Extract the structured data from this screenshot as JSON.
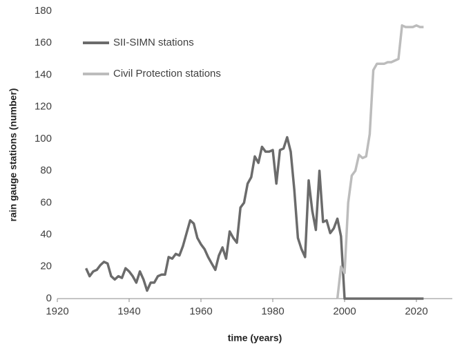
{
  "chart_data": {
    "type": "line",
    "xlabel": "time (years)",
    "ylabel": "rain gauge stations (number)",
    "x": [
      1928,
      1929,
      1930,
      1931,
      1932,
      1933,
      1934,
      1935,
      1936,
      1937,
      1938,
      1939,
      1940,
      1941,
      1942,
      1943,
      1944,
      1945,
      1946,
      1947,
      1948,
      1949,
      1950,
      1951,
      1952,
      1953,
      1954,
      1955,
      1956,
      1957,
      1958,
      1959,
      1960,
      1961,
      1962,
      1963,
      1964,
      1965,
      1966,
      1967,
      1968,
      1969,
      1970,
      1971,
      1972,
      1973,
      1974,
      1975,
      1976,
      1977,
      1978,
      1979,
      1980,
      1981,
      1982,
      1983,
      1984,
      1985,
      1986,
      1987,
      1988,
      1989,
      1990,
      1991,
      1992,
      1993,
      1994,
      1995,
      1996,
      1997,
      1998,
      1999,
      2000,
      2001,
      2002,
      2003,
      2004,
      2005,
      2006,
      2007,
      2008,
      2009,
      2010,
      2011,
      2012,
      2013,
      2014,
      2015,
      2016,
      2017,
      2018,
      2019,
      2020,
      2021,
      2022
    ],
    "series": [
      {
        "name": "SII-SIMN stations",
        "color": "#6b6b6b",
        "values": [
          19,
          14,
          17,
          18,
          21,
          23,
          22,
          14,
          12,
          14,
          13,
          19,
          17,
          14,
          10,
          17,
          12,
          5,
          10,
          10,
          14,
          15,
          15,
          26,
          25,
          28,
          27,
          33,
          41,
          49,
          47,
          38,
          34,
          31,
          26,
          22,
          18,
          27,
          32,
          25,
          42,
          38,
          35,
          57,
          60,
          72,
          76,
          89,
          85,
          95,
          92,
          92,
          93,
          72,
          93,
          94,
          101,
          92,
          68,
          38,
          31,
          26,
          74,
          55,
          43,
          80,
          48,
          49,
          41,
          44,
          50,
          39,
          0,
          0,
          0,
          0,
          0,
          0,
          0,
          0,
          0,
          0,
          0,
          0,
          0,
          0,
          0,
          0,
          0,
          0,
          0,
          0,
          0,
          0,
          0
        ]
      },
      {
        "name": "Civil Protection stations",
        "color": "#bcbcbc",
        "values": [
          null,
          null,
          null,
          null,
          null,
          null,
          null,
          null,
          null,
          null,
          null,
          null,
          null,
          null,
          null,
          null,
          null,
          null,
          null,
          null,
          null,
          null,
          null,
          null,
          null,
          null,
          null,
          null,
          null,
          null,
          null,
          null,
          null,
          null,
          null,
          null,
          null,
          null,
          null,
          null,
          null,
          null,
          null,
          null,
          null,
          null,
          null,
          null,
          null,
          null,
          null,
          null,
          null,
          null,
          null,
          null,
          null,
          null,
          null,
          null,
          null,
          null,
          null,
          null,
          null,
          null,
          null,
          null,
          null,
          null,
          0,
          20,
          16,
          60,
          77,
          80,
          90,
          88,
          89,
          103,
          143,
          147,
          147,
          147,
          148,
          148,
          149,
          150,
          171,
          170,
          170,
          170,
          171,
          170,
          170
        ]
      }
    ],
    "xlim": [
      1920,
      2030
    ],
    "xticks": [
      1920,
      1940,
      1960,
      1980,
      2000,
      2020
    ],
    "ylim": [
      0,
      180
    ],
    "yticks": [
      0,
      20,
      40,
      60,
      80,
      100,
      120,
      140,
      160,
      180
    ],
    "grid": false,
    "legend": "upper left"
  }
}
